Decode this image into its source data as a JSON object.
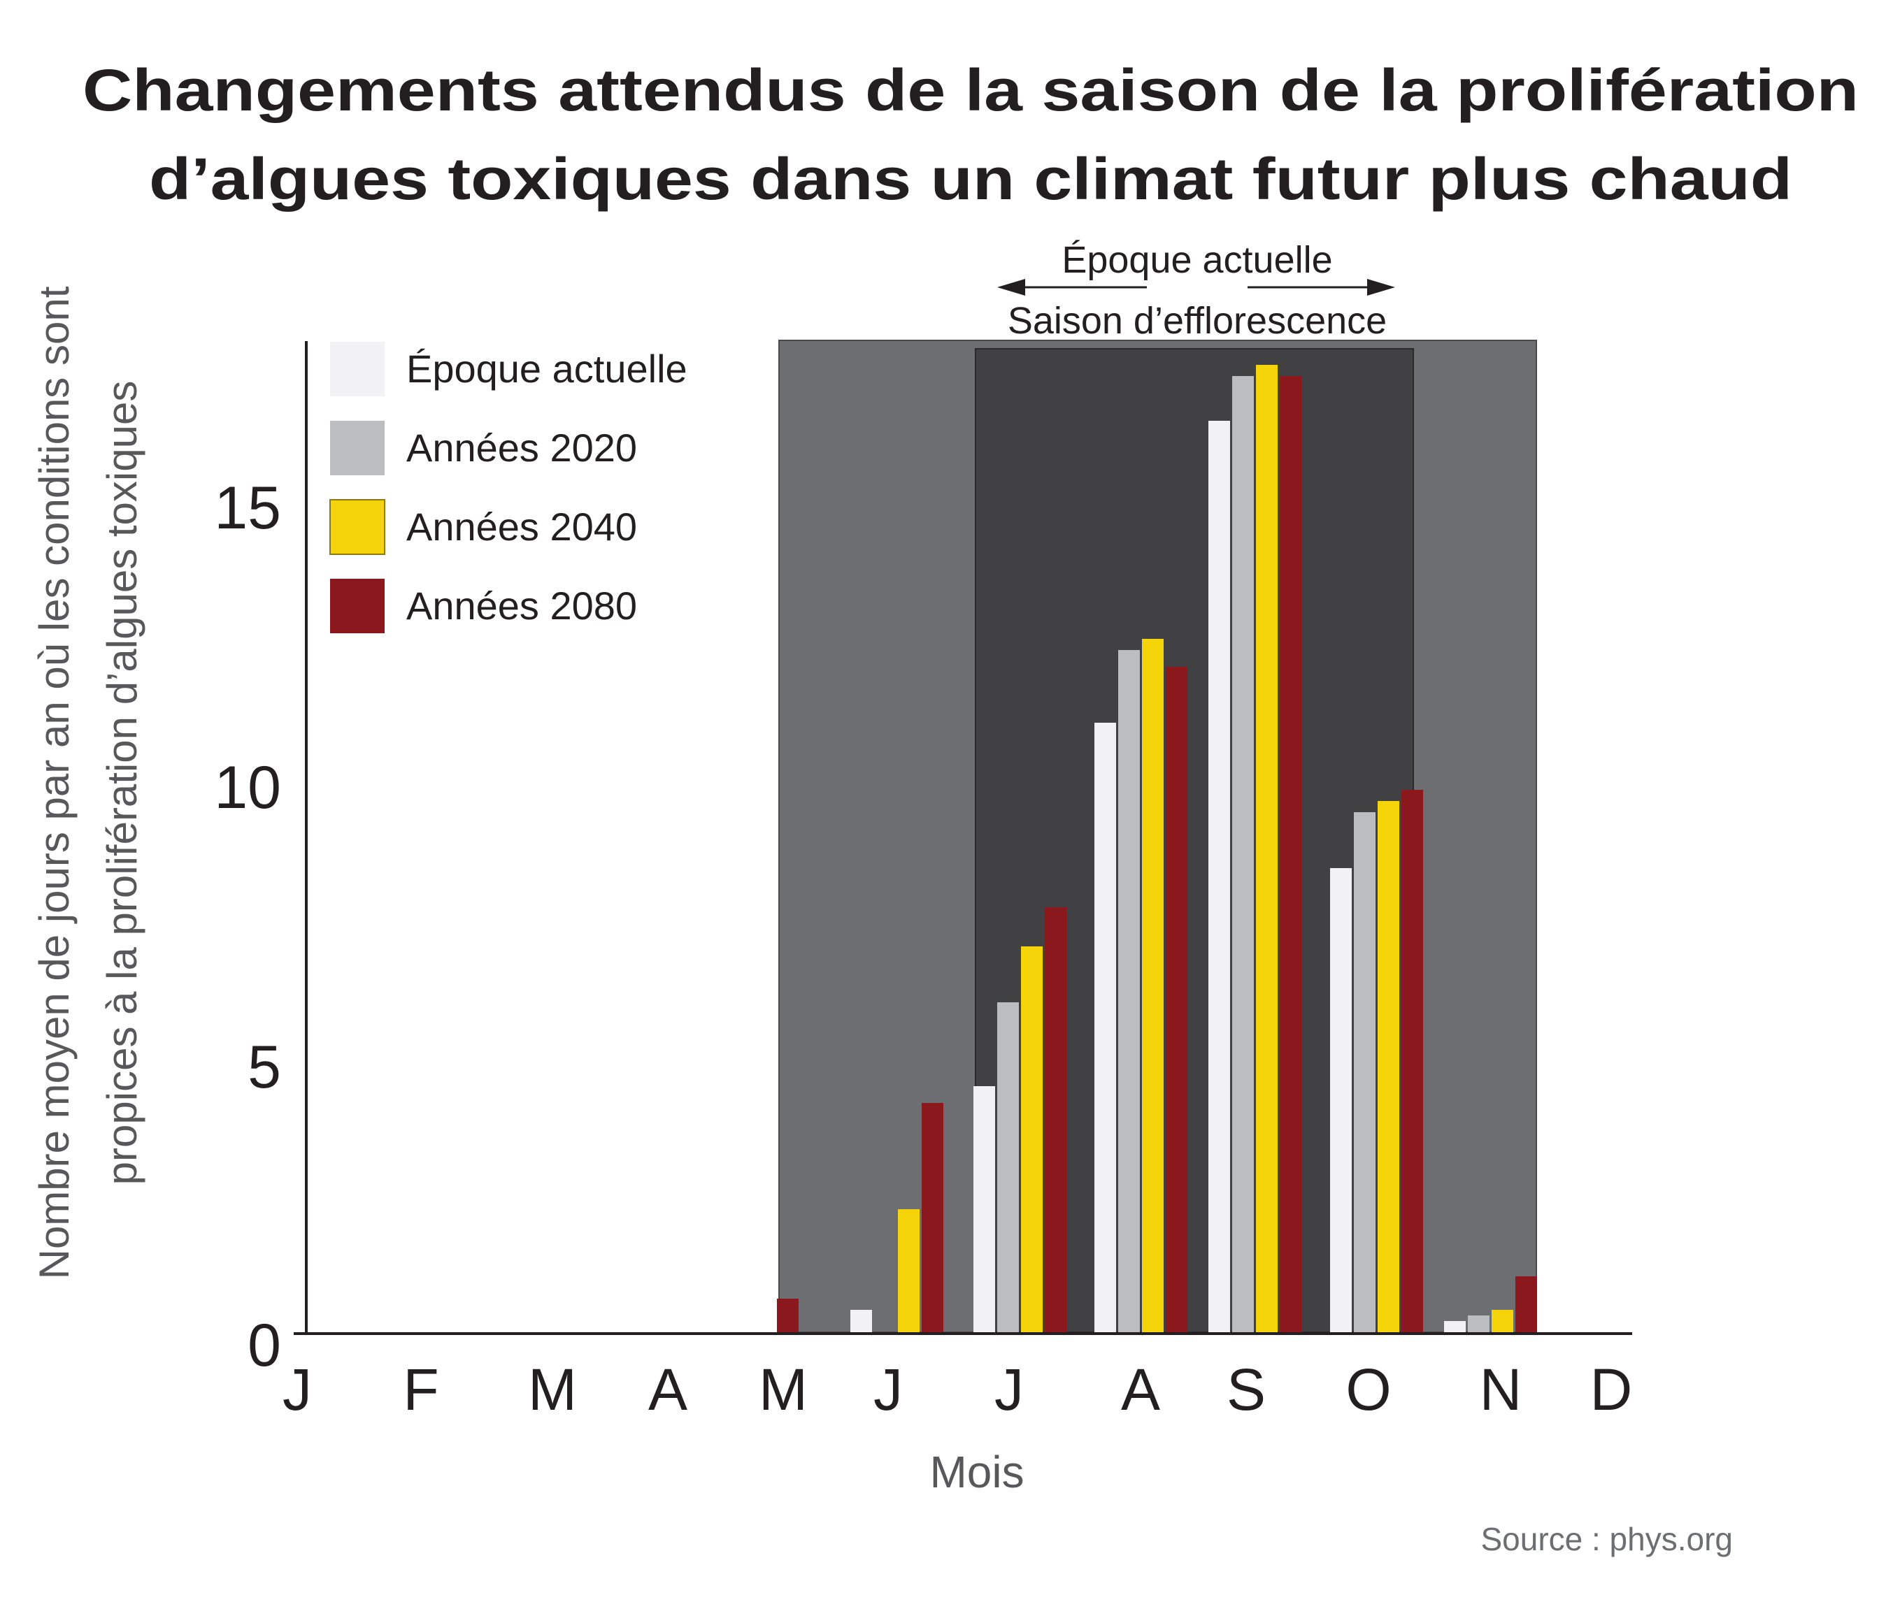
{
  "chart_data": {
    "type": "bar",
    "title": [
      "Changements attendus de la saison de la prolifération",
      "d’algues toxiques dans un climat futur plus chaud"
    ],
    "xlabel": "Mois",
    "ylabel": [
      "Nombre moyen de jours par an où les conditions sont",
      "propices à la prolifération d’algues toxiques"
    ],
    "ylim": [
      0,
      18
    ],
    "yticks": [
      "0",
      "5",
      "10",
      "15"
    ],
    "categories": [
      "J",
      "F",
      "M",
      "A",
      "M",
      "J",
      "J",
      "A",
      "S",
      "O",
      "N",
      "D"
    ],
    "series": [
      {
        "name": "Époque actuelle",
        "color": "#f2f2f4",
        "values": [
          0,
          0,
          0,
          0,
          0,
          0.4,
          4.4,
          10.9,
          16.3,
          8.3,
          0.2,
          0
        ]
      },
      {
        "name": "Années 2020",
        "color": "#bcbdc0",
        "values": [
          0,
          0,
          0,
          0,
          0,
          0,
          5.9,
          12.2,
          17.1,
          9.3,
          0.3,
          0
        ]
      },
      {
        "name": "Années 2040",
        "color": "#f5d40a",
        "values": [
          0,
          0,
          0,
          0,
          0,
          2.2,
          6.9,
          12.4,
          17.3,
          9.5,
          0.4,
          0
        ]
      },
      {
        "name": "Années 2080",
        "color": "#8b181c",
        "values": [
          0,
          0,
          0,
          0,
          0.6,
          4.1,
          7.6,
          11.9,
          17.1,
          9.7,
          1.0,
          0
        ]
      }
    ],
    "legend_position": "top-left",
    "grid": false,
    "shaded_regions": [
      {
        "label": "Saison d’efflorescence",
        "color": "#6d6e71"
      },
      {
        "label": "Époque actuelle",
        "color": "#414042"
      }
    ],
    "annotation": {
      "top": "Époque actuelle",
      "bottom": "Saison d’efflorescence"
    },
    "source": "Source : phys.org"
  }
}
